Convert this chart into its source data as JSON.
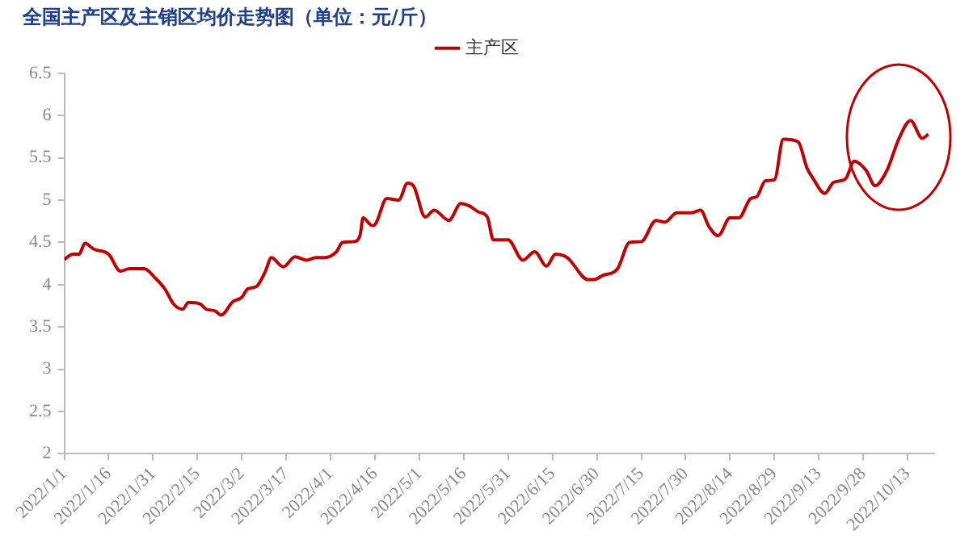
{
  "chart_data": {
    "type": "line",
    "title": "全国主产区及主销区均价走势图（单位：元/斤）",
    "x": [
      "2022-01-01",
      "2022-01-04",
      "2022-01-06",
      "2022-01-08",
      "2022-01-11",
      "2022-01-16",
      "2022-01-20",
      "2022-01-23",
      "2022-01-28",
      "2022-02-01",
      "2022-02-04",
      "2022-02-07",
      "2022-02-10",
      "2022-02-12",
      "2022-02-16",
      "2022-02-18",
      "2022-02-21",
      "2022-02-23",
      "2022-02-27",
      "2022-03-02",
      "2022-03-04",
      "2022-03-07",
      "2022-03-10",
      "2022-03-12",
      "2022-03-16",
      "2022-03-20",
      "2022-03-24",
      "2022-03-27",
      "2022-03-30",
      "2022-04-03",
      "2022-04-05",
      "2022-04-09",
      "2022-04-11",
      "2022-04-12",
      "2022-04-15",
      "2022-04-16",
      "2022-04-20",
      "2022-04-24",
      "2022-04-27",
      "2022-04-29",
      "2022-05-03",
      "2022-05-06",
      "2022-05-11",
      "2022-05-15",
      "2022-05-18",
      "2022-05-21",
      "2022-05-24",
      "2022-05-26",
      "2022-05-31",
      "2022-06-05",
      "2022-06-09",
      "2022-06-13",
      "2022-06-16",
      "2022-06-20",
      "2022-06-27",
      "2022-06-29",
      "2022-07-02",
      "2022-07-07",
      "2022-07-11",
      "2022-07-15",
      "2022-07-20",
      "2022-07-23",
      "2022-07-27",
      "2022-08-01",
      "2022-08-04",
      "2022-08-07",
      "2022-08-10",
      "2022-08-14",
      "2022-08-17",
      "2022-08-21",
      "2022-08-23",
      "2022-08-26",
      "2022-08-29",
      "2022-09-01",
      "2022-09-06",
      "2022-09-09",
      "2022-09-11",
      "2022-09-15",
      "2022-09-18",
      "2022-09-22",
      "2022-09-25",
      "2022-09-29",
      "2022-10-02",
      "2022-10-06",
      "2022-10-10",
      "2022-10-14",
      "2022-10-18",
      "2022-10-20"
    ],
    "series": [
      {
        "name": "主产区",
        "color": "#c00000",
        "values": [
          4.3,
          4.36,
          4.36,
          4.49,
          4.42,
          4.36,
          4.16,
          4.19,
          4.19,
          4.07,
          3.95,
          3.77,
          3.71,
          3.79,
          3.77,
          3.71,
          3.69,
          3.64,
          3.8,
          3.85,
          3.95,
          3.98,
          4.16,
          4.32,
          4.21,
          4.33,
          4.29,
          4.32,
          4.32,
          4.39,
          4.5,
          4.51,
          4.59,
          4.79,
          4.7,
          4.71,
          5.02,
          5.0,
          5.2,
          5.17,
          4.8,
          4.88,
          4.76,
          4.96,
          4.93,
          4.86,
          4.8,
          4.53,
          4.53,
          4.29,
          4.39,
          4.22,
          4.36,
          4.32,
          4.06,
          4.06,
          4.11,
          4.19,
          4.5,
          4.51,
          4.76,
          4.74,
          4.85,
          4.85,
          4.88,
          4.68,
          4.58,
          4.79,
          4.79,
          5.02,
          5.04,
          5.23,
          5.24,
          5.72,
          5.69,
          5.38,
          5.26,
          5.08,
          5.21,
          5.25,
          5.46,
          5.35,
          5.17,
          5.35,
          5.72,
          5.94,
          5.73,
          5.78
        ]
      }
    ],
    "xlim": [
      "2022-01-01",
      "2022-10-22"
    ],
    "xticks": [
      {
        "value": "2022-01-01",
        "label": "2022/1/1"
      },
      {
        "value": "2022-01-16",
        "label": "2022/1/16"
      },
      {
        "value": "2022-01-31",
        "label": "2022/1/31"
      },
      {
        "value": "2022-02-15",
        "label": "2022/2/15"
      },
      {
        "value": "2022-03-02",
        "label": "2022/3/2"
      },
      {
        "value": "2022-03-17",
        "label": "2022/3/17"
      },
      {
        "value": "2022-04-01",
        "label": "2022/4/1"
      },
      {
        "value": "2022-04-16",
        "label": "2022/4/16"
      },
      {
        "value": "2022-05-01",
        "label": "2022/5/1"
      },
      {
        "value": "2022-05-16",
        "label": "2022/5/16"
      },
      {
        "value": "2022-05-31",
        "label": "2022/5/31"
      },
      {
        "value": "2022-06-15",
        "label": "2022/6/15"
      },
      {
        "value": "2022-06-30",
        "label": "2022/6/30"
      },
      {
        "value": "2022-07-15",
        "label": "2022/7/15"
      },
      {
        "value": "2022-07-30",
        "label": "2022/7/30"
      },
      {
        "value": "2022-08-14",
        "label": "2022/8/14"
      },
      {
        "value": "2022-08-29",
        "label": "2022/8/29"
      },
      {
        "value": "2022-09-13",
        "label": "2022/9/13"
      },
      {
        "value": "2022-09-28",
        "label": "2022/9/28"
      },
      {
        "value": "2022-10-13",
        "label": "2022/10/13"
      }
    ],
    "ylim": [
      2,
      6.5
    ],
    "yticks": [
      2,
      2.5,
      3,
      3.5,
      4,
      4.5,
      5,
      5.5,
      6,
      6.5
    ],
    "grid": false,
    "legend": "top",
    "marker": "none",
    "line_style": "solid"
  }
}
